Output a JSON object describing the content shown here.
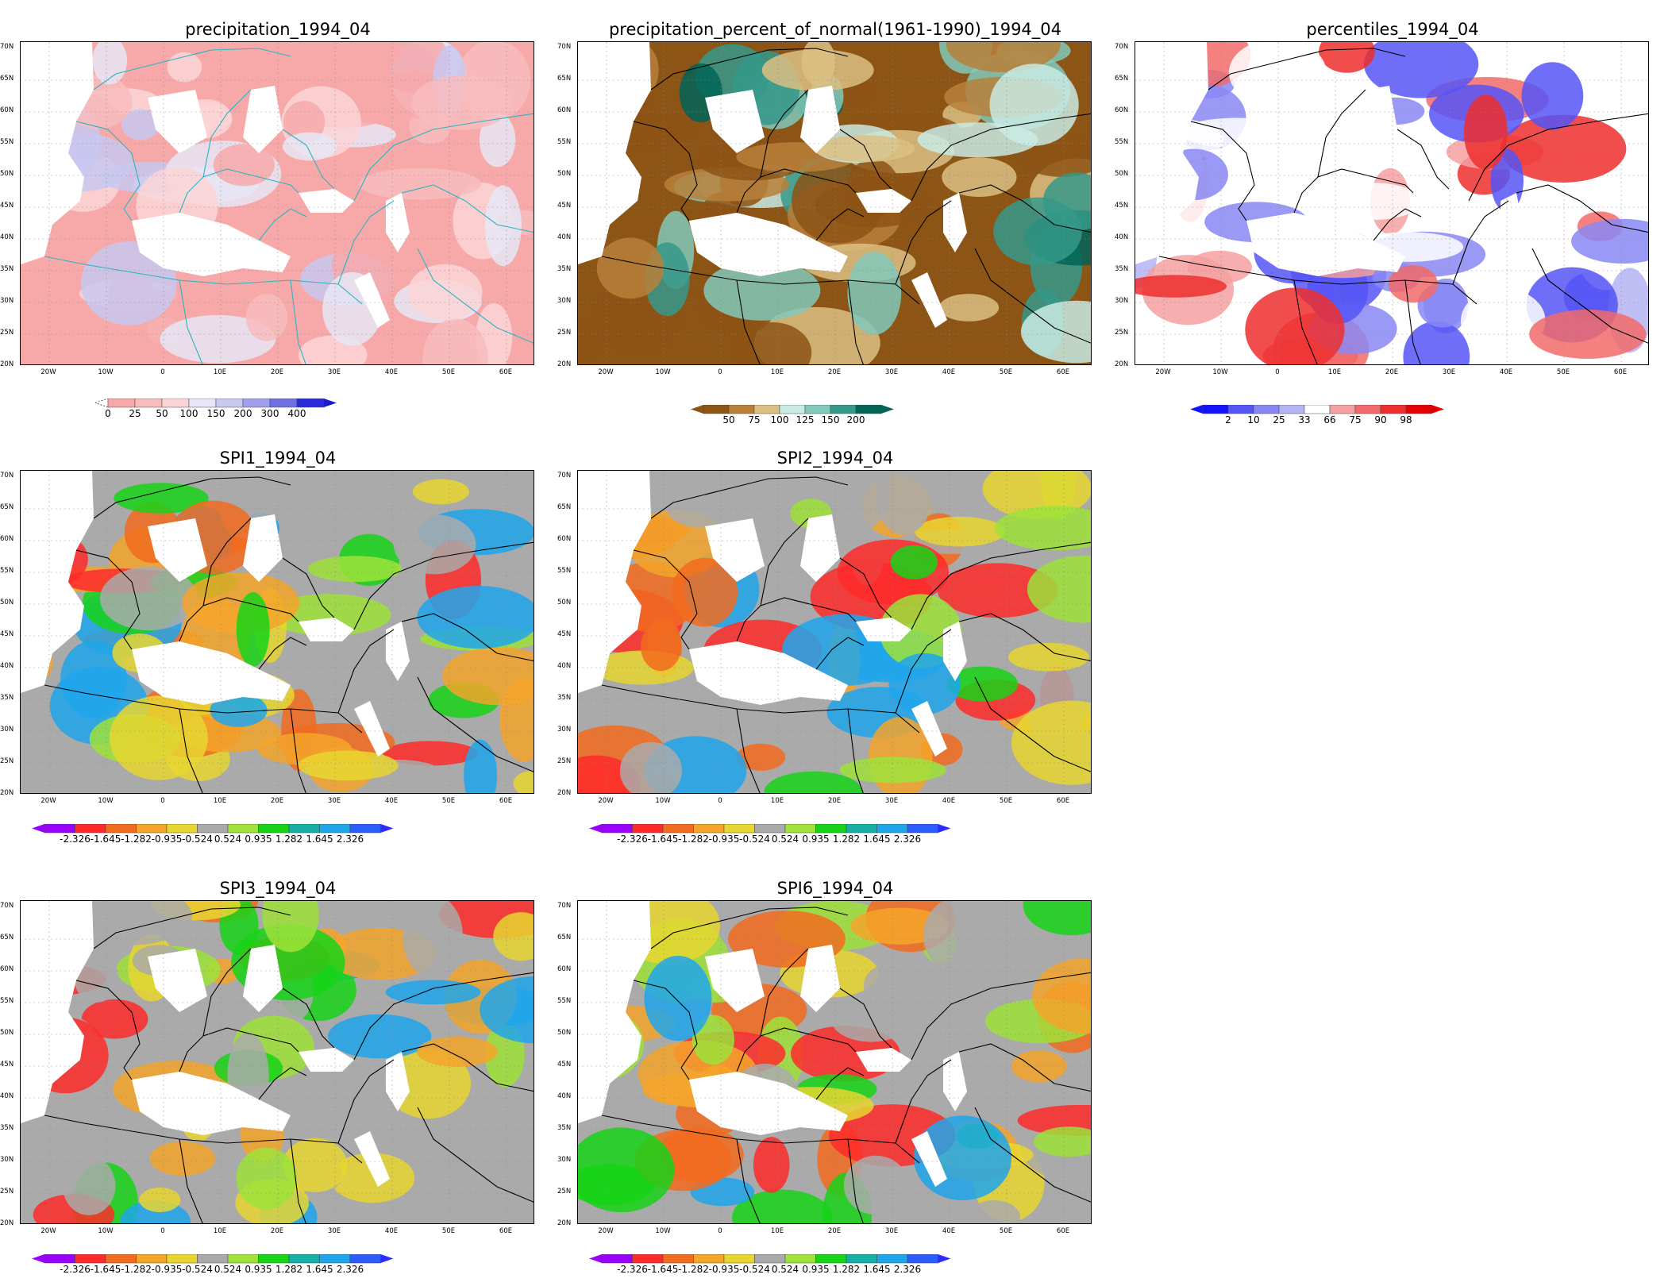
{
  "lat_labels": [
    "70N",
    "65N",
    "60N",
    "55N",
    "50N",
    "45N",
    "40N",
    "35N",
    "30N",
    "25N",
    "20N"
  ],
  "lon_labels": [
    "20W",
    "10W",
    "0",
    "10E",
    "20E",
    "30E",
    "40E",
    "50E",
    "60E"
  ],
  "panels": [
    {
      "id": "precip",
      "title": "precipitation_1994_04",
      "scheme": "precip",
      "legend": {
        "ticks": [
          "0",
          "25",
          "50",
          "100",
          "150",
          "200",
          "300",
          "400"
        ],
        "colors": [
          "#f7a9aa",
          "#f8bcbd",
          "#fbd5d6",
          "#e6e6f6",
          "#c8c8f0",
          "#a0a0ea",
          "#6f6fe4",
          "#2a2ad8"
        ],
        "left_arrow_color": "#ffffff",
        "right_arrow_color": "#1a1ad0"
      }
    },
    {
      "id": "pnorm",
      "title": "precipitation_percent_of_normal(1961-1990)_1994_04",
      "scheme": "pnorm",
      "legend": {
        "ticks": [
          "50",
          "75",
          "100",
          "125",
          "150",
          "200"
        ],
        "colors": [
          "#8c5415",
          "#b9803a",
          "#dcbf84",
          "#c9ebe4",
          "#81c9bb",
          "#35998a",
          "#006457"
        ],
        "left_arrow_color": "#8c5415",
        "right_arrow_color": "#006457"
      }
    },
    {
      "id": "pctl",
      "title": "percentiles_1994_04",
      "scheme": "pctl",
      "legend": {
        "ticks": [
          "2",
          "10",
          "25",
          "33",
          "66",
          "75",
          "90",
          "98"
        ],
        "colors": [
          "#1212ff",
          "#5555f7",
          "#8888f5",
          "#b4b4f5",
          "#ffffff",
          "#f5a0a0",
          "#f26a6a",
          "#ee2e2e",
          "#e60000"
        ],
        "left_arrow_color": "#1212ff",
        "right_arrow_color": "#e60000"
      }
    },
    {
      "id": "spi1",
      "title": "SPI1_1994_04",
      "scheme": "spi",
      "legend": {
        "ticks": [
          "-2.326",
          "-1.645",
          "-1.282",
          "-0.935",
          "-0.524",
          "0.524",
          "0.935",
          "1.282",
          "1.645",
          "2.326"
        ],
        "colors": [
          "#9a00ff",
          "#ff2a2a",
          "#f26b1e",
          "#f4a52a",
          "#e8d630",
          "#aaaaaa",
          "#9ee23a",
          "#16d416",
          "#14b0a5",
          "#1ea6ec",
          "#2c5cff"
        ],
        "left_arrow_color": "#9a00ff",
        "right_arrow_color": "#2c2cff"
      }
    },
    {
      "id": "spi2",
      "title": "SPI2_1994_04",
      "scheme": "spi",
      "legend": {
        "ticks": [
          "-2.326",
          "-1.645",
          "-1.282",
          "-0.935",
          "-0.524",
          "0.524",
          "0.935",
          "1.282",
          "1.645",
          "2.326"
        ],
        "colors": [
          "#9a00ff",
          "#ff2a2a",
          "#f26b1e",
          "#f4a52a",
          "#e8d630",
          "#aaaaaa",
          "#9ee23a",
          "#16d416",
          "#14b0a5",
          "#1ea6ec",
          "#2c5cff"
        ],
        "left_arrow_color": "#9a00ff",
        "right_arrow_color": "#2c2cff"
      }
    },
    {
      "id": "spi3",
      "title": "SPI3_1994_04",
      "scheme": "spi",
      "legend": {
        "ticks": [
          "-2.326",
          "-1.645",
          "-1.282",
          "-0.935",
          "-0.524",
          "0.524",
          "0.935",
          "1.282",
          "1.645",
          "2.326"
        ],
        "colors": [
          "#9a00ff",
          "#ff2a2a",
          "#f26b1e",
          "#f4a52a",
          "#e8d630",
          "#aaaaaa",
          "#9ee23a",
          "#16d416",
          "#14b0a5",
          "#1ea6ec",
          "#2c5cff"
        ],
        "left_arrow_color": "#9a00ff",
        "right_arrow_color": "#2c2cff"
      }
    },
    {
      "id": "spi6",
      "title": "SPI6_1994_04",
      "scheme": "spi",
      "legend": {
        "ticks": [
          "-2.326",
          "-1.645",
          "-1.282",
          "-0.935",
          "-0.524",
          "0.524",
          "0.935",
          "1.282",
          "1.645",
          "2.326"
        ],
        "colors": [
          "#9a00ff",
          "#ff2a2a",
          "#f26b1e",
          "#f4a52a",
          "#e8d630",
          "#aaaaaa",
          "#9ee23a",
          "#16d416",
          "#14b0a5",
          "#1ea6ec",
          "#2c5cff"
        ],
        "left_arrow_color": "#9a00ff",
        "right_arrow_color": "#2c2cff"
      }
    }
  ]
}
